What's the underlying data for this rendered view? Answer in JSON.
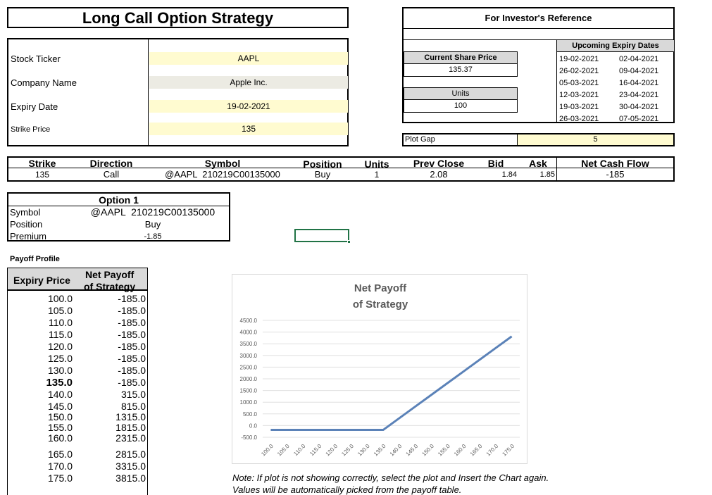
{
  "title": "Long Call Option Strategy",
  "inputs": {
    "rows": [
      {
        "label": "Stock Ticker",
        "value": "AAPL"
      },
      {
        "label": "Company Name",
        "value": "Apple Inc."
      },
      {
        "label": "Expiry Date",
        "value": "19-02-2021"
      },
      {
        "label": "Strike Price",
        "value": "135"
      }
    ]
  },
  "reference": {
    "title": "For Investor's Reference",
    "current_price_label": "Current Share Price",
    "current_price": "135.37",
    "units_label": "Units",
    "units": "100",
    "expiry_title": "Upcoming Expiry Dates",
    "expiry_col1": [
      "19-02-2021",
      "26-02-2021",
      "05-03-2021",
      "12-03-2021",
      "19-03-2021",
      "26-03-2021"
    ],
    "expiry_col2": [
      "02-04-2021",
      "09-04-2021",
      "16-04-2021",
      "23-04-2021",
      "30-04-2021",
      "07-05-2021"
    ]
  },
  "plot_gap": {
    "label": "Plot Gap",
    "value": "5"
  },
  "trade_table": {
    "headers": [
      "Strike",
      "Direction",
      "Symbol",
      "Position",
      "Units",
      "Prev Close",
      "Bid",
      "Ask",
      "Net Cash Flow"
    ],
    "row": [
      "135",
      "Call",
      "@AAPL  210219C00135000",
      "Buy",
      "1",
      "2.08",
      "1.84",
      "1.85",
      "-185"
    ]
  },
  "option1": {
    "title": "Option 1",
    "rows": [
      {
        "label": "Symbol",
        "value": "@AAPL  210219C00135000"
      },
      {
        "label": "Position",
        "value": "Buy"
      },
      {
        "label": "Premium",
        "value": "-1.85"
      }
    ]
  },
  "payoff": {
    "title": "Payoff Profile",
    "col1": "Expiry Price",
    "col2_line1": "Net Payoff",
    "col2_line2": "of Strategy",
    "rows": [
      [
        "100.0",
        "-185.0"
      ],
      [
        "105.0",
        "-185.0"
      ],
      [
        "110.0",
        "-185.0"
      ],
      [
        "115.0",
        "-185.0"
      ],
      [
        "120.0",
        "-185.0"
      ],
      [
        "125.0",
        "-185.0"
      ],
      [
        "130.0",
        "-185.0"
      ],
      [
        "135.0",
        "-185.0"
      ],
      [
        "140.0",
        "315.0"
      ],
      [
        "145.0",
        "815.0"
      ],
      [
        "150.0",
        "1315.0"
      ],
      [
        "155.0",
        "1815.0"
      ],
      [
        "160.0",
        "2315.0"
      ],
      [
        "165.0",
        "2815.0"
      ],
      [
        "170.0",
        "3315.0"
      ],
      [
        "175.0",
        "3815.0"
      ]
    ]
  },
  "note": {
    "line1": "Note: If plot is not showing correctly, select the plot and Insert the Chart again.",
    "line2": "Values will be automatically picked from the payoff table."
  },
  "chart_data": {
    "type": "line",
    "title_line1": "Net Payoff",
    "title_line2": "of Strategy",
    "x": [
      "100.0",
      "105.0",
      "110.0",
      "115.0",
      "120.0",
      "125.0",
      "130.0",
      "135.0",
      "140.0",
      "145.0",
      "150.0",
      "155.0",
      "160.0",
      "165.0",
      "170.0",
      "175.0"
    ],
    "series": [
      {
        "values": [
          -185,
          -185,
          -185,
          -185,
          -185,
          -185,
          -185,
          -185,
          315,
          815,
          1315,
          1815,
          2315,
          2815,
          3315,
          3815
        ]
      }
    ],
    "yticks": [
      "-500.0",
      "0.0",
      "500.0",
      "1000.0",
      "1500.0",
      "2000.0",
      "2500.0",
      "3000.0",
      "3500.0",
      "4000.0",
      "4500.0"
    ],
    "ylim": [
      -500,
      4500
    ],
    "grid": true,
    "line_color": "#5b82b8"
  }
}
